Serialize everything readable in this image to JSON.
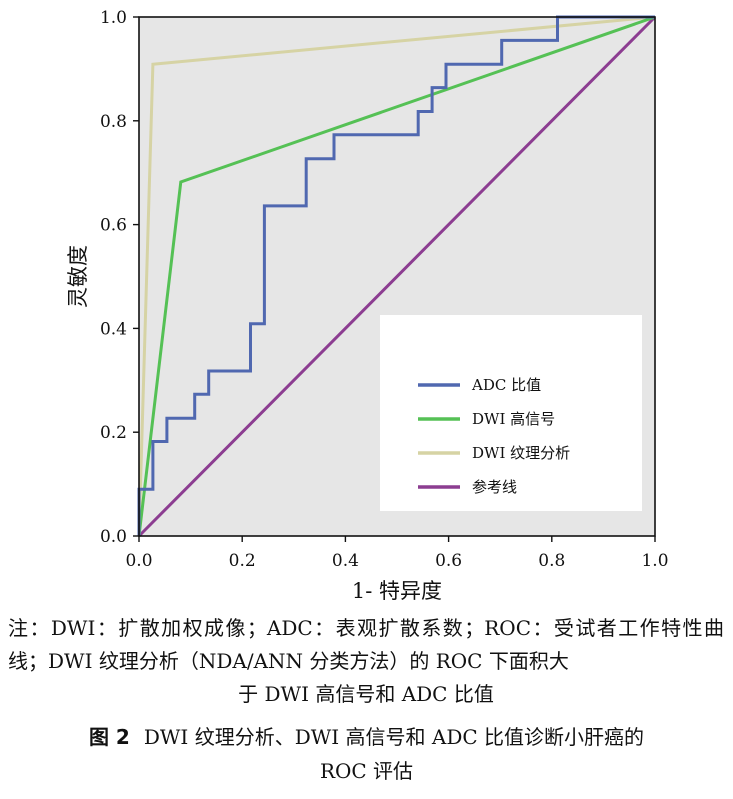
{
  "chart_data": {
    "type": "line",
    "xlabel": "1- 特异度",
    "ylabel": "灵敏度",
    "xlim": [
      0,
      1
    ],
    "ylim": [
      0,
      1
    ],
    "x_ticks": [
      "0.0",
      "0.2",
      "0.4",
      "0.6",
      "0.8",
      "1.0"
    ],
    "y_ticks": [
      "0.0",
      "0.2",
      "0.4",
      "0.6",
      "0.8",
      "1.0"
    ],
    "grid": false,
    "legend_position": "bottom-right",
    "series": [
      {
        "name": "ADC 比值",
        "color": "#5068b0",
        "step": true,
        "points": [
          [
            0,
            0
          ],
          [
            0,
            0.09
          ],
          [
            0.027,
            0.09
          ],
          [
            0.027,
            0.182
          ],
          [
            0.054,
            0.182
          ],
          [
            0.054,
            0.227
          ],
          [
            0.108,
            0.227
          ],
          [
            0.108,
            0.273
          ],
          [
            0.135,
            0.273
          ],
          [
            0.135,
            0.318
          ],
          [
            0.216,
            0.318
          ],
          [
            0.216,
            0.409
          ],
          [
            0.243,
            0.409
          ],
          [
            0.243,
            0.636
          ],
          [
            0.324,
            0.636
          ],
          [
            0.324,
            0.727
          ],
          [
            0.378,
            0.727
          ],
          [
            0.378,
            0.773
          ],
          [
            0.541,
            0.773
          ],
          [
            0.541,
            0.818
          ],
          [
            0.568,
            0.818
          ],
          [
            0.568,
            0.864
          ],
          [
            0.595,
            0.864
          ],
          [
            0.595,
            0.909
          ],
          [
            0.703,
            0.909
          ],
          [
            0.703,
            0.955
          ],
          [
            0.811,
            0.955
          ],
          [
            0.811,
            1.0
          ],
          [
            1.0,
            1.0
          ]
        ]
      },
      {
        "name": "DWI 高信号",
        "color": "#55c155",
        "step": false,
        "points": [
          [
            0,
            0
          ],
          [
            0.081,
            0.682
          ],
          [
            1.0,
            1.0
          ]
        ]
      },
      {
        "name": "DWI 纹理分析",
        "color": "#d6d3a4",
        "step": false,
        "points": [
          [
            0,
            0
          ],
          [
            0.027,
            0.909
          ],
          [
            1.0,
            1.0
          ]
        ]
      },
      {
        "name": "参考线",
        "color": "#8c3d91",
        "step": false,
        "points": [
          [
            0,
            0
          ],
          [
            1.0,
            1.0
          ]
        ]
      }
    ]
  },
  "note": {
    "main": "注：DWI：扩散加权成像；ADC：表观扩散系数；ROC：受试者工作特性曲线；DWI 纹理分析（NDA/ANN 分类方法）的 ROC 下面积大",
    "last": "于 DWI 高信号和 ADC 比值"
  },
  "caption": {
    "figure_no": "图 2",
    "line1": "DWI 纹理分析、DWI 高信号和 ADC 比值诊断小肝癌的",
    "line2": "ROC 评估"
  }
}
